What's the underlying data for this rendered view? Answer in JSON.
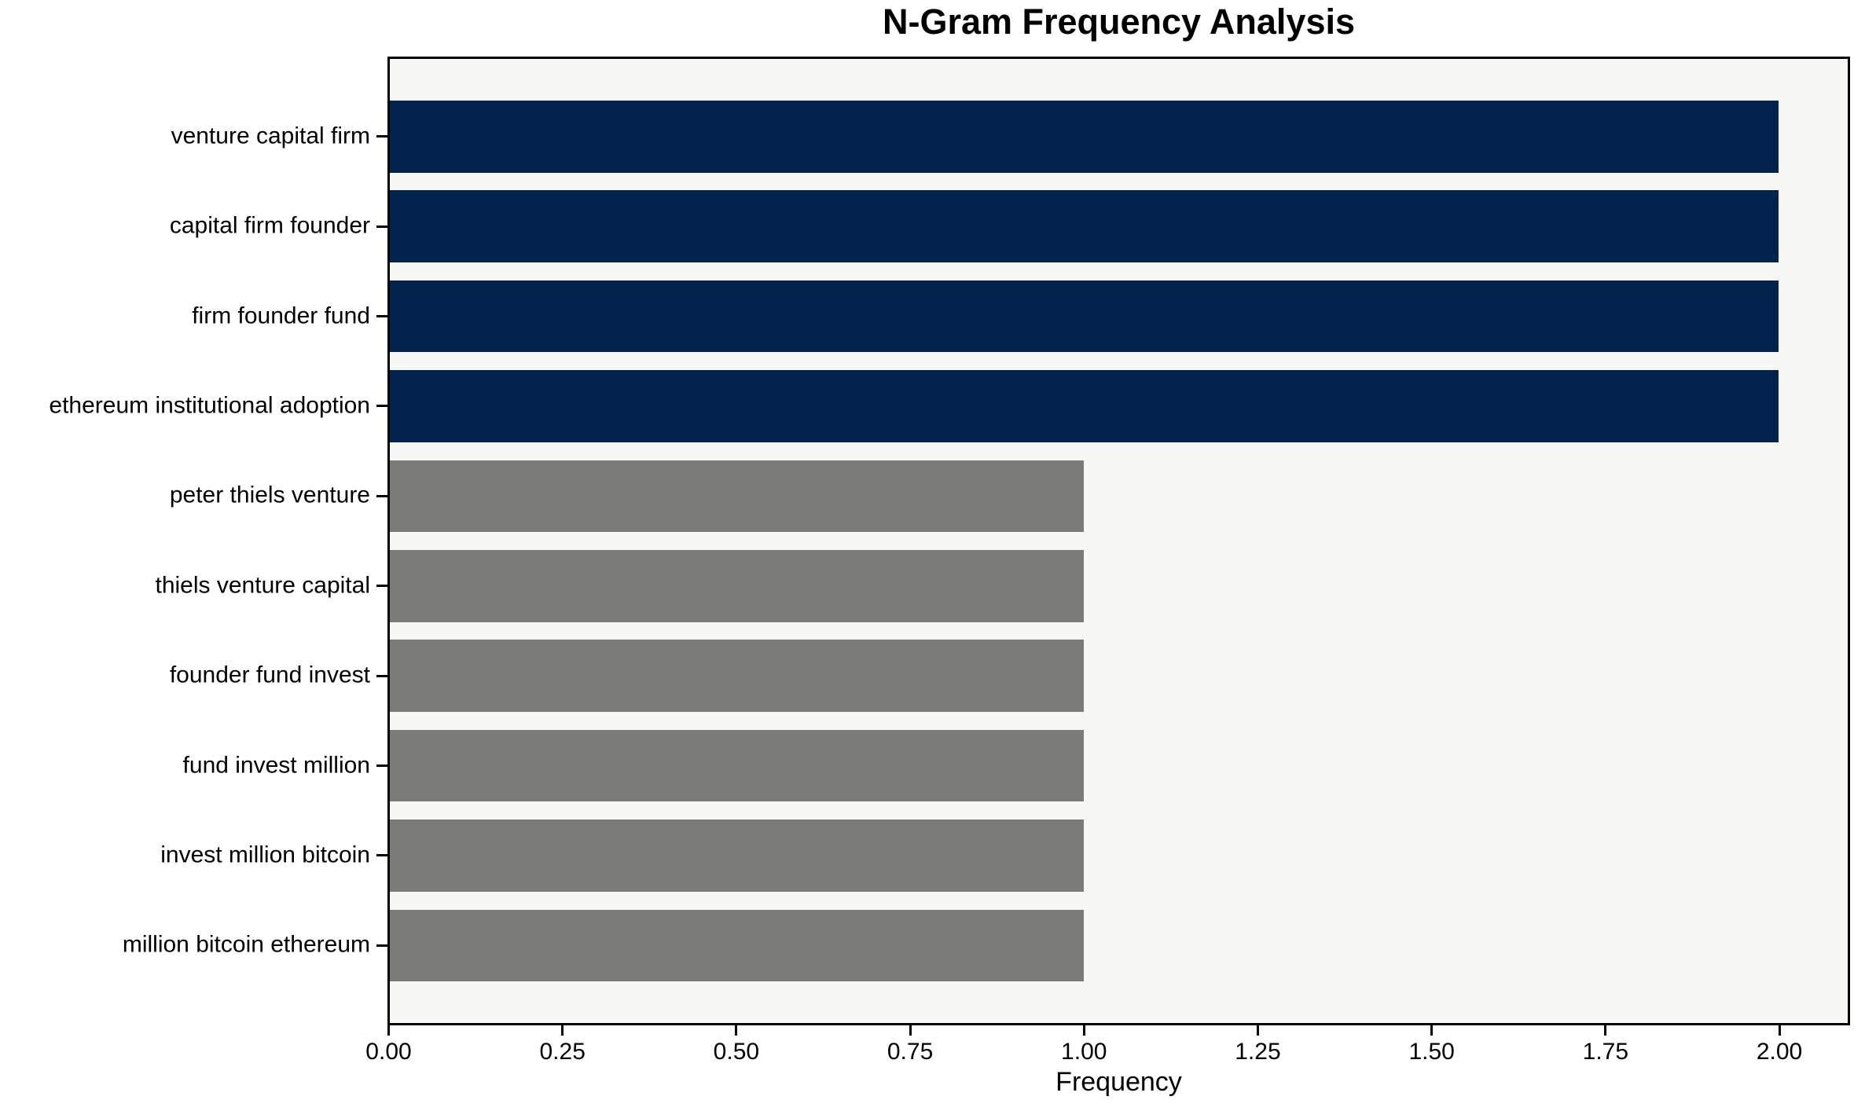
{
  "chart_data": {
    "type": "bar",
    "orientation": "horizontal",
    "title": "N-Gram Frequency Analysis",
    "xlabel": "Frequency",
    "ylabel": "",
    "categories": [
      "venture capital firm",
      "capital firm founder",
      "firm founder fund",
      "ethereum institutional adoption",
      "peter thiels venture",
      "thiels venture capital",
      "founder fund invest",
      "fund invest million",
      "invest million bitcoin",
      "million bitcoin ethereum"
    ],
    "values": [
      2,
      2,
      2,
      2,
      1,
      1,
      1,
      1,
      1,
      1
    ],
    "bar_colors": [
      "#03234f",
      "#03234f",
      "#03234f",
      "#03234f",
      "#7b7b78",
      "#7b7b78",
      "#7b7b78",
      "#7b7b78",
      "#7b7b78",
      "#7b7b78"
    ],
    "xlim": [
      0,
      2.1
    ],
    "xticks": [
      0,
      0.25,
      0.5,
      0.75,
      1.0,
      1.25,
      1.5,
      1.75,
      2.0
    ],
    "xtick_labels": [
      "0.00",
      "0.25",
      "0.50",
      "0.75",
      "1.00",
      "1.25",
      "1.50",
      "1.75",
      "2.00"
    ],
    "grid": false,
    "legend": null,
    "colors": {
      "plot_background": "#f7f7f6",
      "figure_background": "#ffffff",
      "axis": "#000000",
      "text": "#000000"
    }
  }
}
